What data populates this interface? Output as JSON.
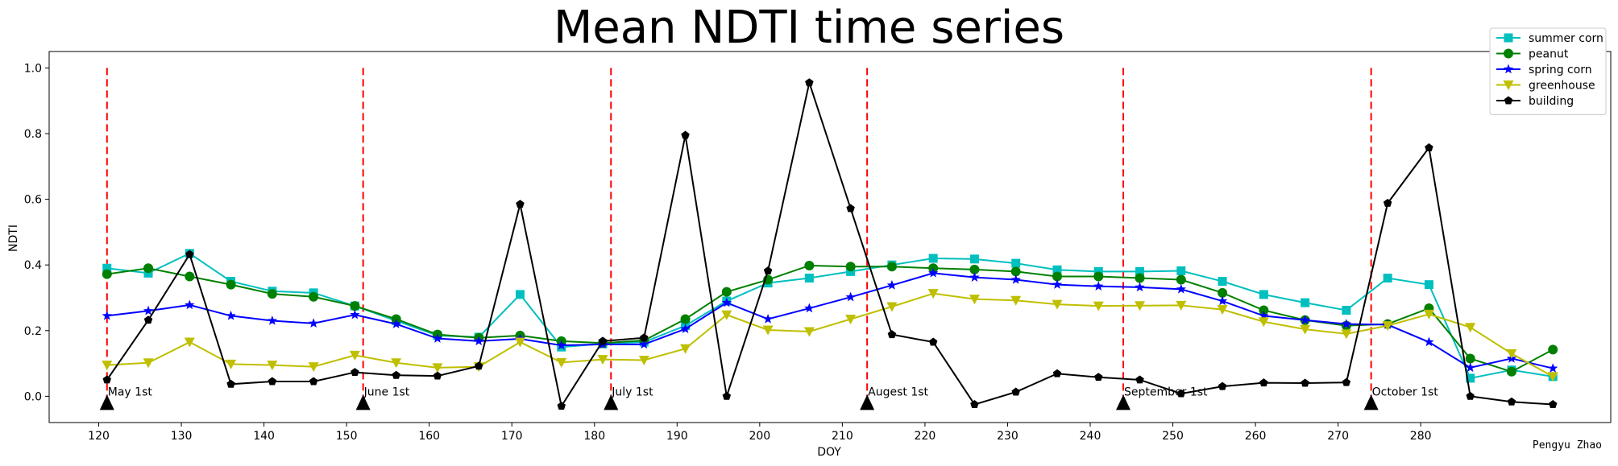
{
  "chart_data": {
    "type": "line",
    "title": "Mean NDTI time series",
    "xlabel": "DOY",
    "ylabel": "NDTI",
    "xlim": [
      114,
      303
    ],
    "ylim": [
      -0.08,
      1.05
    ],
    "xticks": [
      120,
      130,
      140,
      150,
      160,
      170,
      180,
      190,
      200,
      210,
      220,
      230,
      240,
      250,
      260,
      270,
      280
    ],
    "yticks": [
      0.0,
      0.2,
      0.4,
      0.6,
      0.8,
      1.0
    ],
    "ytick_labels": [
      "0.0",
      "0.2",
      "0.4",
      "0.6",
      "0.8",
      "1.0"
    ],
    "grid": false,
    "legend_position": "top-right",
    "x": [
      121,
      126,
      131,
      136,
      141,
      146,
      151,
      156,
      161,
      166,
      171,
      176,
      181,
      186,
      191,
      196,
      201,
      206,
      211,
      216,
      221,
      226,
      231,
      236,
      241,
      246,
      251,
      256,
      261,
      266,
      271,
      276,
      281,
      286,
      291,
      296
    ],
    "series": [
      {
        "name": "summer corn",
        "color": "#00bfbf",
        "marker": "square",
        "values": [
          0.39,
          0.375,
          0.435,
          0.35,
          0.32,
          0.315,
          0.275,
          0.23,
          0.185,
          0.18,
          0.31,
          0.15,
          0.16,
          0.165,
          0.215,
          0.29,
          0.345,
          0.36,
          0.38,
          0.4,
          0.42,
          0.418,
          0.405,
          0.385,
          0.38,
          0.38,
          0.382,
          0.35,
          0.31,
          0.285,
          0.262,
          0.36,
          0.34,
          0.055,
          0.08,
          0.06
        ]
      },
      {
        "name": "peanut",
        "color": "#008000",
        "marker": "circle",
        "values": [
          0.372,
          0.39,
          0.365,
          0.34,
          0.312,
          0.303,
          0.275,
          0.235,
          0.188,
          0.178,
          0.185,
          0.168,
          0.162,
          0.17,
          0.235,
          0.318,
          0.355,
          0.398,
          0.395,
          0.395,
          0.39,
          0.386,
          0.38,
          0.365,
          0.365,
          0.36,
          0.355,
          0.315,
          0.262,
          0.232,
          0.215,
          0.22,
          0.268,
          0.115,
          0.075,
          0.142
        ]
      },
      {
        "name": "spring corn",
        "color": "#0000ff",
        "marker": "star",
        "values": [
          0.245,
          0.26,
          0.278,
          0.245,
          0.23,
          0.222,
          0.248,
          0.22,
          0.176,
          0.168,
          0.175,
          0.155,
          0.158,
          0.158,
          0.205,
          0.285,
          0.235,
          0.268,
          0.302,
          0.338,
          0.375,
          0.362,
          0.355,
          0.34,
          0.335,
          0.332,
          0.326,
          0.29,
          0.245,
          0.232,
          0.22,
          0.218,
          0.165,
          0.087,
          0.115,
          0.085
        ]
      },
      {
        "name": "greenhouse",
        "color": "#bfbf00",
        "marker": "triangle-down",
        "values": [
          0.095,
          0.102,
          0.165,
          0.098,
          0.095,
          0.09,
          0.125,
          0.102,
          0.087,
          0.09,
          0.165,
          0.103,
          0.112,
          0.11,
          0.145,
          0.248,
          0.202,
          0.197,
          0.235,
          0.273,
          0.313,
          0.296,
          0.292,
          0.28,
          0.275,
          0.276,
          0.277,
          0.264,
          0.227,
          0.204,
          0.19,
          0.215,
          0.25,
          0.21,
          0.13,
          0.06
        ]
      },
      {
        "name": "building",
        "color": "#000000",
        "marker": "pentagon",
        "values": [
          0.05,
          0.232,
          0.432,
          0.037,
          0.045,
          0.045,
          0.073,
          0.064,
          0.062,
          0.092,
          0.585,
          -0.03,
          0.168,
          0.178,
          0.795,
          0.0,
          0.382,
          0.955,
          0.572,
          0.188,
          0.165,
          -0.025,
          0.013,
          0.069,
          0.058,
          0.05,
          0.008,
          0.03,
          0.041,
          0.04,
          0.042,
          0.588,
          0.757,
          0.0,
          -0.017,
          -0.025
        ]
      }
    ],
    "vlines": [
      {
        "x": 121,
        "label": "May 1st"
      },
      {
        "x": 152,
        "label": "June 1st"
      },
      {
        "x": 182,
        "label": "July 1st"
      },
      {
        "x": 213,
        "label": "Augest 1st"
      },
      {
        "x": 244,
        "label": "September 1st"
      },
      {
        "x": 274,
        "label": "October 1st"
      }
    ],
    "vline_color": "#ff0000",
    "credit": "Pengyu Zhao"
  }
}
